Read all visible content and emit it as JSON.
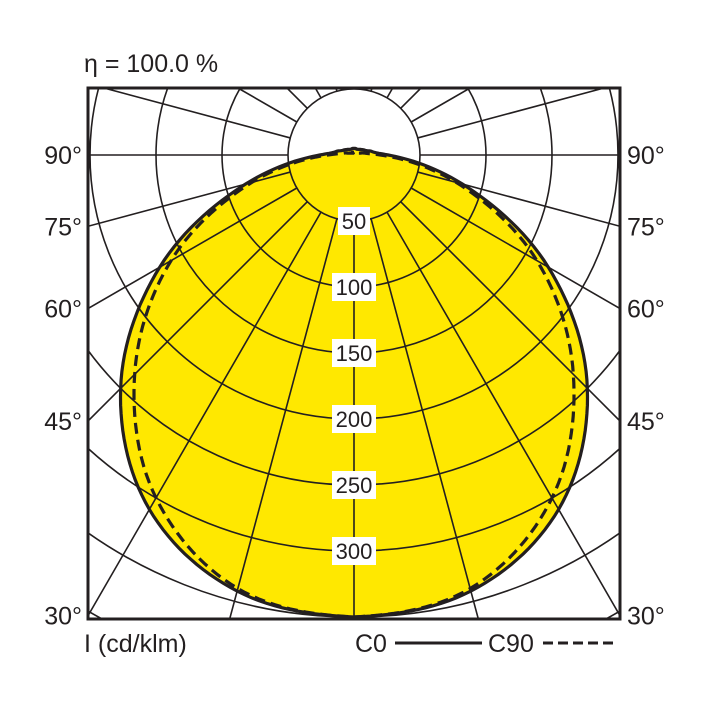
{
  "chart_data": {
    "type": "polar",
    "title": "η = 100.0 %",
    "unit_label": "I (cd/klm)",
    "radial_ticks": [
      50,
      100,
      150,
      200,
      250,
      300
    ],
    "radial_tick_labels": [
      "50",
      "100",
      "150",
      "200",
      "250",
      "300"
    ],
    "angle_tick_labels": [
      "90°",
      "75°",
      "60°",
      "45°",
      "30°"
    ],
    "angle_ticks": [
      90,
      75,
      60,
      45,
      30
    ],
    "grid": true,
    "symmetric": true,
    "angles": [
      0,
      15,
      30,
      45,
      60,
      75,
      90,
      105,
      120,
      135,
      150,
      165,
      180
    ],
    "series": [
      {
        "name": "C0",
        "style": "solid",
        "values": [
          350,
          342,
          310,
          250,
          170,
          85,
          26,
          12,
          8,
          6,
          5,
          5,
          5
        ]
      },
      {
        "name": "C90",
        "style": "dashed",
        "values": [
          350,
          340,
          300,
          235,
          160,
          80,
          20,
          6,
          3,
          2,
          2,
          2,
          2
        ]
      }
    ],
    "fill_color": "#FFE800",
    "line_color": "#231f20",
    "legend_placement": "bottom-right"
  }
}
